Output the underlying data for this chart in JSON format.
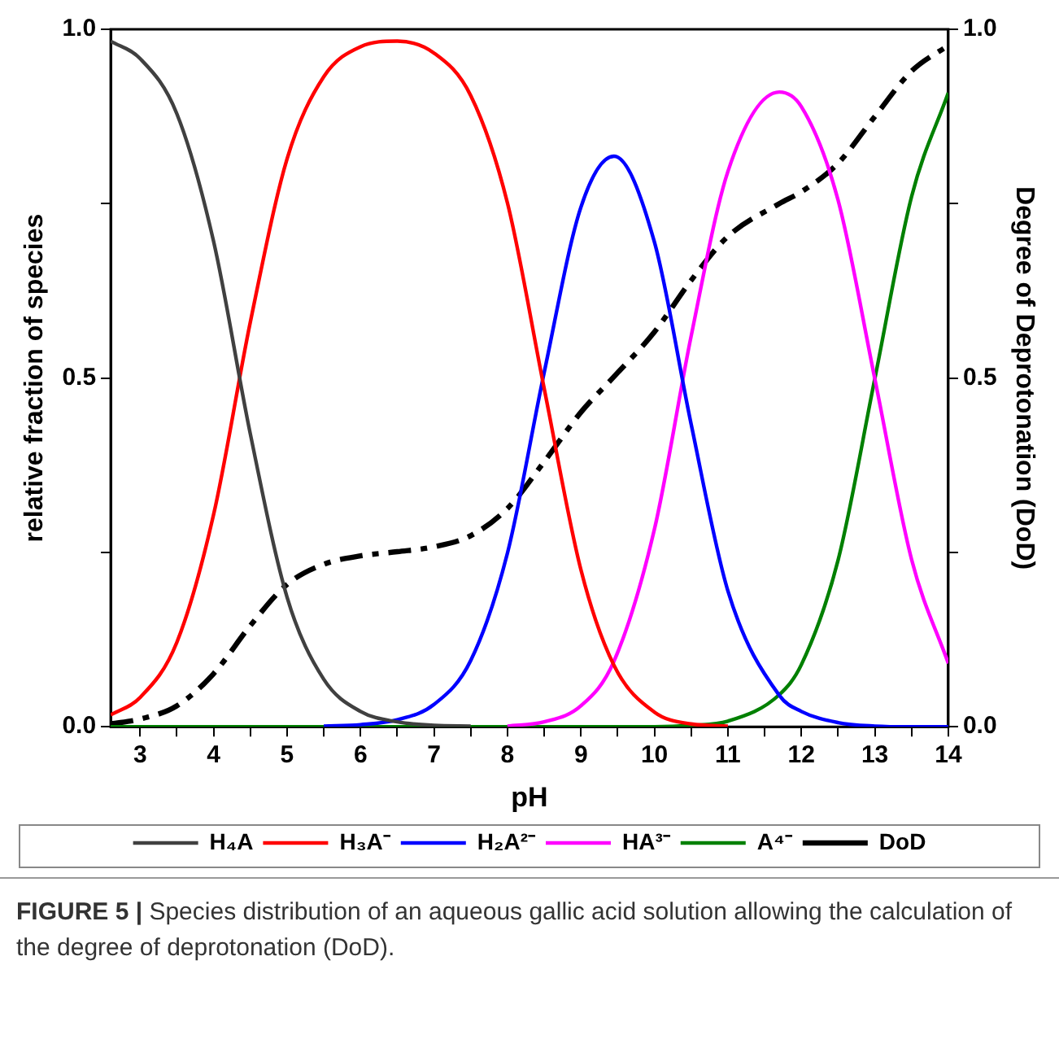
{
  "chart_data": {
    "type": "line",
    "xlabel": "pH",
    "ylabel": "relative fraction of species",
    "y2label": "Degree of Deprotonation (DoD)",
    "x": [
      2.6,
      3,
      3.5,
      4,
      4.5,
      5,
      5.5,
      6,
      6.5,
      7,
      7.5,
      8,
      8.5,
      9,
      9.45,
      10,
      10.5,
      11,
      11.7,
      12,
      12.5,
      13,
      13.5,
      14
    ],
    "series": [
      {
        "name": "H₄A",
        "color": "#404040",
        "values": [
          0.983,
          0.958,
          0.879,
          0.696,
          0.42,
          0.186,
          0.068,
          0.022,
          0.007,
          0.002,
          0.001,
          null,
          null,
          null,
          null,
          null,
          null,
          null,
          null,
          null,
          null,
          null,
          null,
          null
        ]
      },
      {
        "name": "H₃A⁻",
        "color": "#ff0000",
        "values": [
          0.017,
          0.042,
          0.121,
          0.304,
          0.58,
          0.814,
          0.932,
          0.975,
          0.983,
          0.966,
          0.905,
          0.751,
          0.485,
          0.225,
          0.088,
          0.021,
          0.004,
          0.001,
          null,
          null,
          null,
          null,
          null,
          null
        ]
      },
      {
        "name": "H₂A²⁻",
        "color": "#0000ff",
        "values": [
          null,
          null,
          null,
          null,
          null,
          null,
          0.001,
          0.003,
          0.01,
          0.032,
          0.095,
          0.249,
          0.508,
          0.745,
          0.818,
          0.695,
          0.434,
          0.195,
          0.045,
          0.022,
          0.006,
          0.001,
          0,
          0
        ]
      },
      {
        "name": "HA³⁻",
        "color": "#ff00ff",
        "values": [
          null,
          null,
          null,
          null,
          null,
          null,
          null,
          null,
          null,
          null,
          null,
          0.001,
          0.007,
          0.03,
          0.094,
          0.283,
          0.56,
          0.796,
          0.91,
          0.889,
          0.755,
          0.499,
          0.24,
          0.091
        ]
      },
      {
        "name": "A⁴⁻",
        "color": "#008000",
        "values": [
          0,
          0,
          0,
          0,
          0,
          0,
          0,
          0,
          0,
          0,
          0,
          0,
          0,
          0,
          0,
          0,
          0.002,
          0.008,
          0.046,
          0.089,
          0.239,
          0.499,
          0.76,
          0.909
        ]
      },
      {
        "name": "DoD",
        "color": "#000000",
        "axis": "y2",
        "line_style": "dashed",
        "values": [
          0.004,
          0.011,
          0.03,
          0.076,
          0.145,
          0.204,
          0.233,
          0.245,
          0.251,
          0.258,
          0.274,
          0.313,
          0.38,
          0.451,
          0.502,
          0.566,
          0.64,
          0.703,
          0.75,
          0.767,
          0.808,
          0.875,
          0.94,
          0.977
        ]
      }
    ],
    "xlim": [
      2.6,
      14
    ],
    "xticks": [
      3,
      {
        "value": 3.5,
        "label": null
      },
      4,
      {
        "value": 4.5,
        "label": null
      },
      5,
      {
        "value": 5.5,
        "label": null
      },
      6,
      {
        "value": 6.5,
        "label": null
      },
      7,
      {
        "value": 7.5,
        "label": null
      },
      8,
      {
        "value": 8.5,
        "label": null
      },
      9,
      {
        "value": 9.5,
        "label": null
      },
      10,
      {
        "value": 10.5,
        "label": null
      },
      11,
      {
        "value": 11.5,
        "label": null
      },
      12,
      {
        "value": 12.5,
        "label": null
      },
      13,
      {
        "value": 13.5,
        "label": null
      },
      14
    ],
    "ylim": [
      0,
      1
    ],
    "yticks": [
      {
        "value": 0,
        "label": "0.0"
      },
      {
        "value": 0.25,
        "label": null
      },
      {
        "value": 0.5,
        "label": "0.5"
      },
      {
        "value": 0.75,
        "label": null
      },
      {
        "value": 1,
        "label": "1.0"
      }
    ],
    "y2lim": [
      0,
      1
    ],
    "y2ticks": [
      {
        "value": 0,
        "label": "0.0"
      },
      {
        "value": 0.25,
        "label": null
      },
      {
        "value": 0.5,
        "label": "0.5"
      },
      {
        "value": 0.75,
        "label": null
      },
      {
        "value": 1,
        "label": "1.0"
      }
    ],
    "marker": "none",
    "legend": "bottom",
    "annotations": [
      "FIGURE 5 | Species distribution of an aqueous gallic acid solution allowing the calculation of the degree of deprotonation (DoD)."
    ]
  }
}
